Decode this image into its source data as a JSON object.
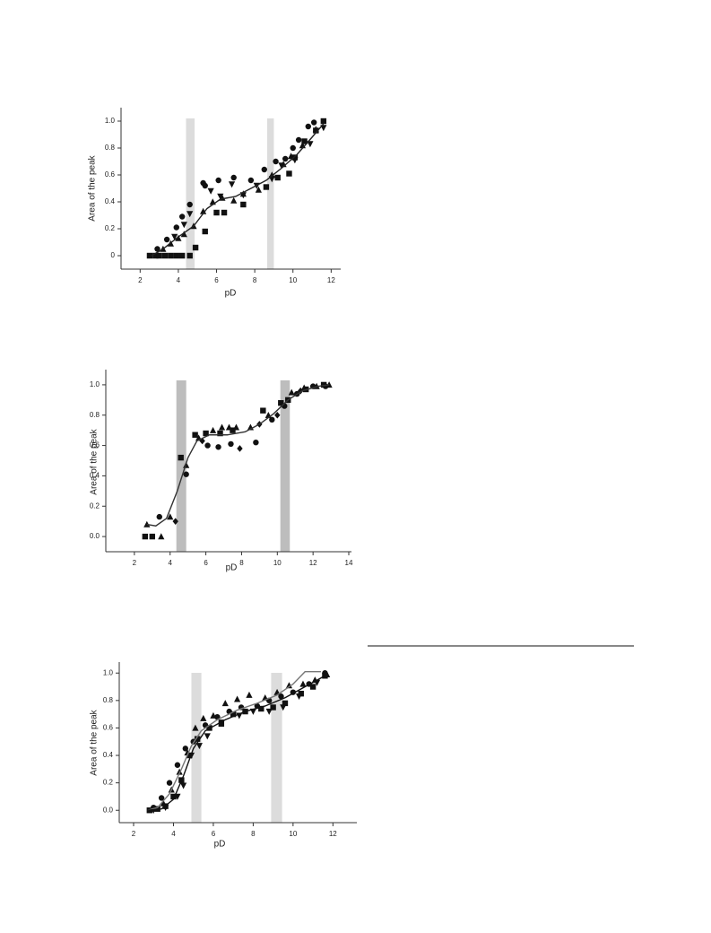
{
  "chart_data": [
    {
      "type": "scatter",
      "x_label": "pD",
      "y_label": "Area of the peak",
      "xlim": [
        1,
        12.5
      ],
      "ylim": [
        -0.1,
        1.1
      ],
      "xticks": [
        2,
        4,
        6,
        8,
        10,
        12
      ],
      "yticks": [
        0,
        0.2,
        0.4,
        0.6,
        0.8,
        {
          "value": 1,
          "label": "1.0"
        }
      ],
      "bands": [
        {
          "from": 4.4,
          "to": 4.85
        },
        {
          "from": 8.65,
          "to": 9.0
        }
      ],
      "band_color": "#dcdcdc",
      "series": [
        {
          "marker": "square",
          "color": "#111",
          "x": [
            2.5,
            2.8,
            3.0,
            3.3,
            3.6,
            3.9,
            4.2,
            4.6,
            4.9,
            5.4,
            6.0,
            6.4,
            7.4,
            8.6,
            9.2,
            9.8,
            10.1,
            10.6,
            11.2,
            11.6
          ],
          "values": [
            0,
            0,
            0,
            0,
            0,
            0,
            0,
            0,
            0.06,
            0.18,
            0.32,
            0.32,
            0.38,
            0.51,
            0.58,
            0.61,
            0.73,
            0.85,
            0.93,
            1.0
          ]
        },
        {
          "marker": "circle",
          "color": "#111",
          "x": [
            2.9,
            3.4,
            3.9,
            4.2,
            4.6,
            5.3,
            5.4,
            6.1,
            6.9,
            7.8,
            8.5,
            9.1,
            9.6,
            10.0,
            10.3,
            10.8,
            11.1
          ],
          "values": [
            0.05,
            0.12,
            0.21,
            0.29,
            0.38,
            0.54,
            0.52,
            0.56,
            0.58,
            0.56,
            0.64,
            0.7,
            0.72,
            0.8,
            0.86,
            0.96,
            0.99
          ]
        },
        {
          "marker": "triangle",
          "color": "#111",
          "x": [
            3.2,
            3.6,
            4.0,
            4.3,
            4.8,
            5.3,
            5.8,
            6.3,
            6.9,
            7.4,
            8.2,
            8.9,
            9.5,
            9.9,
            10.5,
            11.2
          ],
          "values": [
            0.05,
            0.09,
            0.13,
            0.16,
            0.22,
            0.33,
            0.4,
            0.43,
            0.41,
            0.46,
            0.49,
            0.6,
            0.68,
            0.74,
            0.82,
            0.94
          ]
        },
        {
          "marker": "triangle-down",
          "color": "#111",
          "x": [
            3.8,
            4.3,
            4.6,
            5.7,
            6.2,
            6.8,
            7.4,
            8.1,
            8.9,
            9.4,
            10.1,
            10.9,
            11.6
          ],
          "values": [
            0.14,
            0.23,
            0.31,
            0.48,
            0.44,
            0.53,
            0.45,
            0.52,
            0.57,
            0.67,
            0.71,
            0.83,
            0.95
          ]
        },
        {
          "line": true,
          "color": "#222",
          "x": [
            2.6,
            3.2,
            4,
            4.8,
            5.5,
            6.2,
            7,
            7.8,
            8.6,
            9.4,
            10.2,
            11,
            11.6
          ],
          "values": [
            0,
            0.05,
            0.14,
            0.22,
            0.35,
            0.42,
            0.44,
            0.5,
            0.56,
            0.65,
            0.75,
            0.88,
            0.98
          ]
        }
      ]
    },
    {
      "type": "scatter",
      "x_label": "pD",
      "y_label": "Area of the peak",
      "xlim": [
        0.4,
        14.15
      ],
      "ylim": [
        -0.1,
        1.1
      ],
      "xticks": [
        2,
        4,
        6,
        8,
        10,
        12,
        14
      ],
      "yticks": [
        {
          "value": 0,
          "label": "0.0"
        },
        0.2,
        0.4,
        0.6,
        0.8,
        {
          "value": 1,
          "label": "1.0"
        }
      ],
      "bands": [
        {
          "from": 4.35,
          "to": 4.9
        },
        {
          "from": 10.17,
          "to": 10.7
        }
      ],
      "band_color": "#bdbdbd",
      "series": [
        {
          "marker": "square",
          "color": "#111",
          "x": [
            2.6,
            3.0,
            4.6,
            5.4,
            6.0,
            6.8,
            7.5,
            9.2,
            10.2,
            10.6,
            11.6,
            12.6
          ],
          "values": [
            0,
            0,
            0.52,
            0.67,
            0.68,
            0.68,
            0.7,
            0.83,
            0.88,
            0.9,
            0.97,
            1.0
          ]
        },
        {
          "marker": "triangle",
          "color": "#111",
          "x": [
            2.7,
            3.5,
            4.0,
            4.9,
            5.6,
            6.4,
            6.9,
            7.3,
            7.7,
            8.5,
            9.5,
            10.8,
            11.5,
            12.2,
            12.9
          ],
          "values": [
            0.08,
            0,
            0.13,
            0.47,
            0.65,
            0.7,
            0.72,
            0.72,
            0.72,
            0.72,
            0.8,
            0.95,
            0.98,
            0.99,
            1.0
          ]
        },
        {
          "marker": "circle",
          "color": "#111",
          "x": [
            3.4,
            4.9,
            6.1,
            6.7,
            7.4,
            8.8,
            9.7,
            10.4,
            11.1,
            12.0,
            12.7
          ],
          "values": [
            0.13,
            0.41,
            0.6,
            0.59,
            0.61,
            0.62,
            0.77,
            0.86,
            0.94,
            0.99,
            0.99
          ]
        },
        {
          "marker": "diamond",
          "color": "#111",
          "x": [
            4.3,
            5.8,
            7.9,
            9.0,
            10.0,
            11.3
          ],
          "values": [
            0.1,
            0.63,
            0.58,
            0.74,
            0.8,
            0.96
          ]
        },
        {
          "line": true,
          "color": "#333",
          "x": [
            2.7,
            3.2,
            3.8,
            4.4,
            5.0,
            5.5,
            6.2,
            7.2,
            8.2,
            9.0,
            9.8,
            10.6,
            11.4,
            12.3,
            12.9
          ],
          "values": [
            0.08,
            0.07,
            0.12,
            0.3,
            0.52,
            0.63,
            0.67,
            0.67,
            0.69,
            0.74,
            0.81,
            0.9,
            0.96,
            0.99,
            1.0
          ]
        }
      ]
    },
    {
      "type": "scatter",
      "x_label": "pD",
      "y_label": "Area of the peak",
      "xlim": [
        1.28,
        13.2
      ],
      "ylim": [
        -0.09,
        1.08
      ],
      "xticks": [
        2,
        4,
        6,
        8,
        10,
        12
      ],
      "yticks": [
        {
          "value": 0,
          "label": "0.0"
        },
        0.2,
        0.4,
        0.6,
        0.8,
        {
          "value": 1,
          "label": "1.0"
        }
      ],
      "bands": [
        {
          "from": 4.9,
          "to": 5.4
        },
        {
          "from": 8.9,
          "to": 9.45
        }
      ],
      "band_color": "#dcdcdc",
      "series": [
        {
          "marker": "square",
          "color": "#111",
          "x": [
            2.8,
            3.2,
            3.6,
            4.0,
            4.4,
            4.8,
            5.2,
            5.8,
            6.4,
            7.0,
            7.6,
            8.4,
            9.0,
            9.6,
            10.4,
            11.0,
            11.6
          ],
          "values": [
            0,
            0.01,
            0.03,
            0.1,
            0.22,
            0.4,
            0.52,
            0.6,
            0.63,
            0.7,
            0.72,
            0.74,
            0.75,
            0.78,
            0.85,
            0.9,
            0.98
          ]
        },
        {
          "marker": "circle",
          "color": "#111",
          "x": [
            3.0,
            3.4,
            3.8,
            4.2,
            4.6,
            5.0,
            5.6,
            6.2,
            6.8,
            7.4,
            8.2,
            8.8,
            9.4,
            10.0,
            10.8,
            11.6
          ],
          "values": [
            0.02,
            0.09,
            0.2,
            0.33,
            0.45,
            0.5,
            0.62,
            0.68,
            0.72,
            0.75,
            0.76,
            0.8,
            0.83,
            0.86,
            0.92,
            1.0
          ]
        },
        {
          "marker": "triangle",
          "color": "#111",
          "x": [
            3.5,
            3.9,
            4.3,
            4.7,
            5.1,
            5.5,
            6.0,
            6.6,
            7.2,
            7.8,
            8.6,
            9.2,
            9.8,
            10.5,
            11.1,
            11.7
          ],
          "values": [
            0.05,
            0.15,
            0.28,
            0.42,
            0.6,
            0.67,
            0.69,
            0.78,
            0.81,
            0.84,
            0.82,
            0.86,
            0.91,
            0.92,
            0.95,
            0.99
          ]
        },
        {
          "marker": "triangle-down",
          "color": "#111",
          "x": [
            3.0,
            3.6,
            4.2,
            4.5,
            4.9,
            5.3,
            5.7,
            6.4,
            7.3,
            8.0,
            8.8,
            9.5,
            10.3,
            11.2
          ],
          "values": [
            0,
            0.02,
            0.1,
            0.18,
            0.4,
            0.47,
            0.54,
            0.64,
            0.69,
            0.72,
            0.72,
            0.75,
            0.83,
            0.93
          ]
        },
        {
          "line": true,
          "color": "#777",
          "x": [
            2.7,
            3.2,
            3.8,
            4.4,
            4.9,
            5.4,
            6.2,
            7.2,
            8.2,
            9.2,
            10.0,
            10.6,
            11.4
          ],
          "values": [
            0,
            0.02,
            0.12,
            0.3,
            0.47,
            0.58,
            0.66,
            0.73,
            0.78,
            0.84,
            0.92,
            1.01,
            1.01
          ]
        },
        {
          "line": true,
          "color": "#111",
          "x": [
            2.7,
            3.4,
            4.0,
            4.5,
            5.0,
            5.6,
            6.6,
            7.6,
            8.6,
            9.6,
            10.6,
            11.6
          ],
          "values": [
            0,
            0.01,
            0.08,
            0.25,
            0.45,
            0.58,
            0.66,
            0.72,
            0.76,
            0.82,
            0.9,
            0.98
          ]
        }
      ]
    }
  ]
}
